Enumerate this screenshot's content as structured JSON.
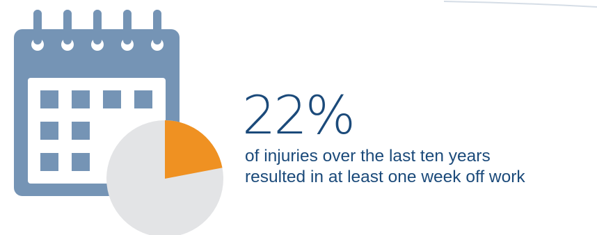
{
  "stat": {
    "value": "22%",
    "caption_line1": "of injuries over the last ten years",
    "caption_line2": "resulted in at least one week off work"
  },
  "pie": {
    "highlight_fraction": 0.22
  },
  "colors": {
    "calendar": "#7594b5",
    "pie_highlight": "#ef9122",
    "pie_rest": "#e3e4e6",
    "text": "#1b4a7a"
  },
  "icons": [
    "calendar-icon",
    "pie-chart-icon"
  ]
}
